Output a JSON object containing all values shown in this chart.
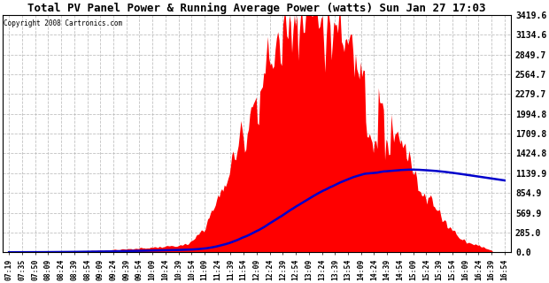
{
  "title": "Total PV Panel Power & Running Average Power (watts) Sun Jan 27 17:03",
  "copyright": "Copyright 2008 Cartronics.com",
  "bg_color": "#FFFFFF",
  "plot_bg_color": "#FFFFFF",
  "grid_color": "#BBBBBB",
  "area_color": "#FF0000",
  "avg_color": "#0000CC",
  "yticks": [
    0.0,
    285.0,
    569.9,
    854.9,
    1139.9,
    1424.8,
    1709.8,
    1994.8,
    2279.7,
    2564.7,
    2849.7,
    3134.6,
    3419.6
  ],
  "ylim": [
    0,
    3419.6
  ],
  "xtick_labels": [
    "07:19",
    "07:35",
    "07:50",
    "08:09",
    "08:24",
    "08:39",
    "08:54",
    "09:09",
    "09:24",
    "09:39",
    "09:54",
    "10:09",
    "10:24",
    "10:39",
    "10:54",
    "11:09",
    "11:24",
    "11:39",
    "11:54",
    "12:09",
    "12:24",
    "12:39",
    "12:54",
    "13:09",
    "13:24",
    "13:39",
    "13:54",
    "14:09",
    "14:24",
    "14:39",
    "14:54",
    "15:09",
    "15:24",
    "15:39",
    "15:54",
    "16:09",
    "16:24",
    "16:39",
    "16:54"
  ],
  "n_ticks": 39,
  "samples_per_tick": 10
}
